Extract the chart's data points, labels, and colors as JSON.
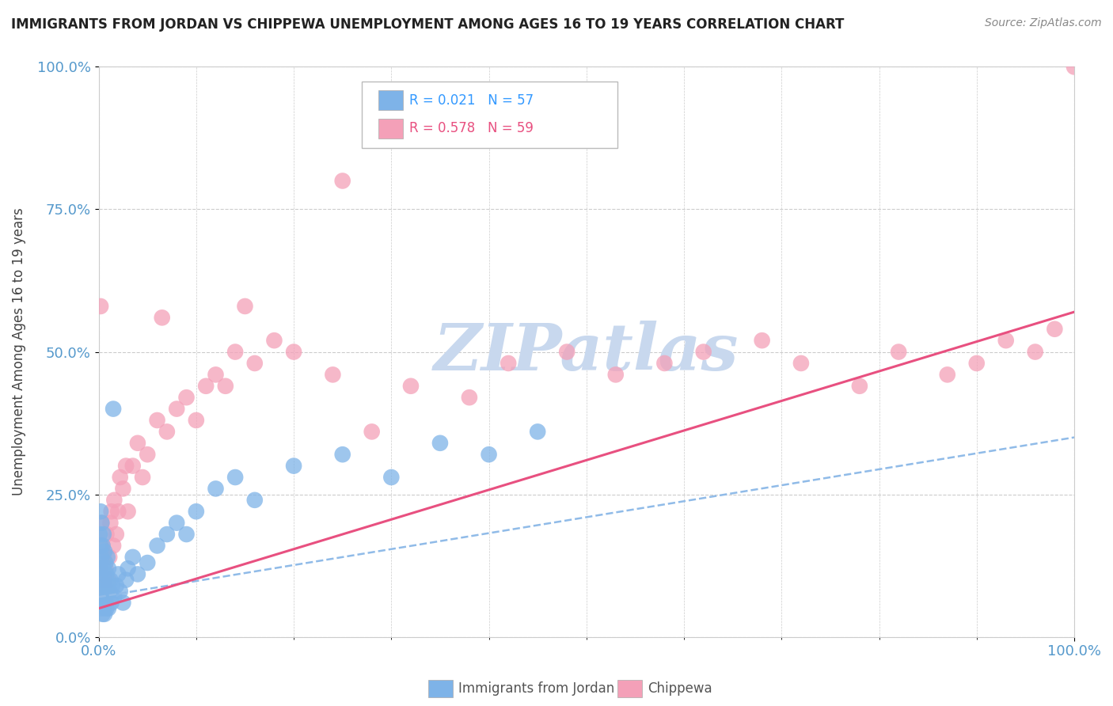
{
  "title": "IMMIGRANTS FROM JORDAN VS CHIPPEWA UNEMPLOYMENT AMONG AGES 16 TO 19 YEARS CORRELATION CHART",
  "source": "Source: ZipAtlas.com",
  "ylabel": "Unemployment Among Ages 16 to 19 years",
  "xlim": [
    0,
    1.0
  ],
  "ylim": [
    0,
    1.0
  ],
  "xtick_labels": [
    "0.0%",
    "100.0%"
  ],
  "ytick_labels": [
    "0.0%",
    "25.0%",
    "50.0%",
    "75.0%",
    "100.0%"
  ],
  "ytick_positions": [
    0.0,
    0.25,
    0.5,
    0.75,
    1.0
  ],
  "legend_r1": "R = 0.021",
  "legend_n1": "N = 57",
  "legend_r2": "R = 0.578",
  "legend_n2": "N = 59",
  "color_jordan": "#7EB3E8",
  "color_chippewa": "#F4A0B8",
  "jordan_x": [
    0.001,
    0.001,
    0.001,
    0.002,
    0.002,
    0.002,
    0.002,
    0.003,
    0.003,
    0.003,
    0.003,
    0.004,
    0.004,
    0.004,
    0.005,
    0.005,
    0.005,
    0.006,
    0.006,
    0.006,
    0.007,
    0.007,
    0.008,
    0.008,
    0.009,
    0.009,
    0.01,
    0.01,
    0.011,
    0.012,
    0.013,
    0.014,
    0.015,
    0.016,
    0.018,
    0.02,
    0.022,
    0.025,
    0.028,
    0.03,
    0.035,
    0.04,
    0.05,
    0.06,
    0.07,
    0.08,
    0.09,
    0.1,
    0.12,
    0.14,
    0.16,
    0.2,
    0.25,
    0.3,
    0.35,
    0.4,
    0.45
  ],
  "jordan_y": [
    0.08,
    0.12,
    0.18,
    0.06,
    0.1,
    0.16,
    0.22,
    0.05,
    0.08,
    0.14,
    0.2,
    0.04,
    0.1,
    0.16,
    0.06,
    0.12,
    0.18,
    0.04,
    0.09,
    0.15,
    0.06,
    0.13,
    0.05,
    0.11,
    0.07,
    0.14,
    0.05,
    0.12,
    0.08,
    0.1,
    0.06,
    0.09,
    0.4,
    0.07,
    0.09,
    0.11,
    0.08,
    0.06,
    0.1,
    0.12,
    0.14,
    0.11,
    0.13,
    0.16,
    0.18,
    0.2,
    0.18,
    0.22,
    0.26,
    0.28,
    0.24,
    0.3,
    0.32,
    0.28,
    0.34,
    0.32,
    0.36
  ],
  "chippewa_x": [
    0.001,
    0.002,
    0.003,
    0.004,
    0.005,
    0.006,
    0.007,
    0.008,
    0.009,
    0.01,
    0.011,
    0.012,
    0.013,
    0.015,
    0.016,
    0.018,
    0.02,
    0.022,
    0.025,
    0.028,
    0.03,
    0.035,
    0.04,
    0.045,
    0.05,
    0.06,
    0.07,
    0.08,
    0.09,
    0.1,
    0.11,
    0.12,
    0.14,
    0.16,
    0.18,
    0.2,
    0.24,
    0.28,
    0.32,
    0.38,
    0.42,
    0.48,
    0.53,
    0.58,
    0.62,
    0.68,
    0.72,
    0.78,
    0.82,
    0.87,
    0.9,
    0.93,
    0.96,
    0.98,
    1.0,
    0.25,
    0.15,
    0.065,
    0.13
  ],
  "chippewa_y": [
    0.12,
    0.58,
    0.2,
    0.16,
    0.14,
    0.1,
    0.12,
    0.18,
    0.08,
    0.1,
    0.14,
    0.2,
    0.22,
    0.16,
    0.24,
    0.18,
    0.22,
    0.28,
    0.26,
    0.3,
    0.22,
    0.3,
    0.34,
    0.28,
    0.32,
    0.38,
    0.36,
    0.4,
    0.42,
    0.38,
    0.44,
    0.46,
    0.5,
    0.48,
    0.52,
    0.5,
    0.46,
    0.36,
    0.44,
    0.42,
    0.48,
    0.5,
    0.46,
    0.48,
    0.5,
    0.52,
    0.48,
    0.44,
    0.5,
    0.46,
    0.48,
    0.52,
    0.5,
    0.54,
    1.0,
    0.8,
    0.58,
    0.56,
    0.44
  ],
  "jordan_line_x0": 0.0,
  "jordan_line_x1": 1.0,
  "jordan_line_y0": 0.07,
  "jordan_line_y1": 0.35,
  "chippewa_line_x0": 0.0,
  "chippewa_line_x1": 1.0,
  "chippewa_line_y0": 0.05,
  "chippewa_line_y1": 0.57,
  "watermark_text": "ZIPatlas",
  "watermark_color": "#C8D8EE",
  "grid_color": "#cccccc",
  "tick_color": "#5599CC",
  "title_color": "#222222",
  "source_color": "#888888"
}
